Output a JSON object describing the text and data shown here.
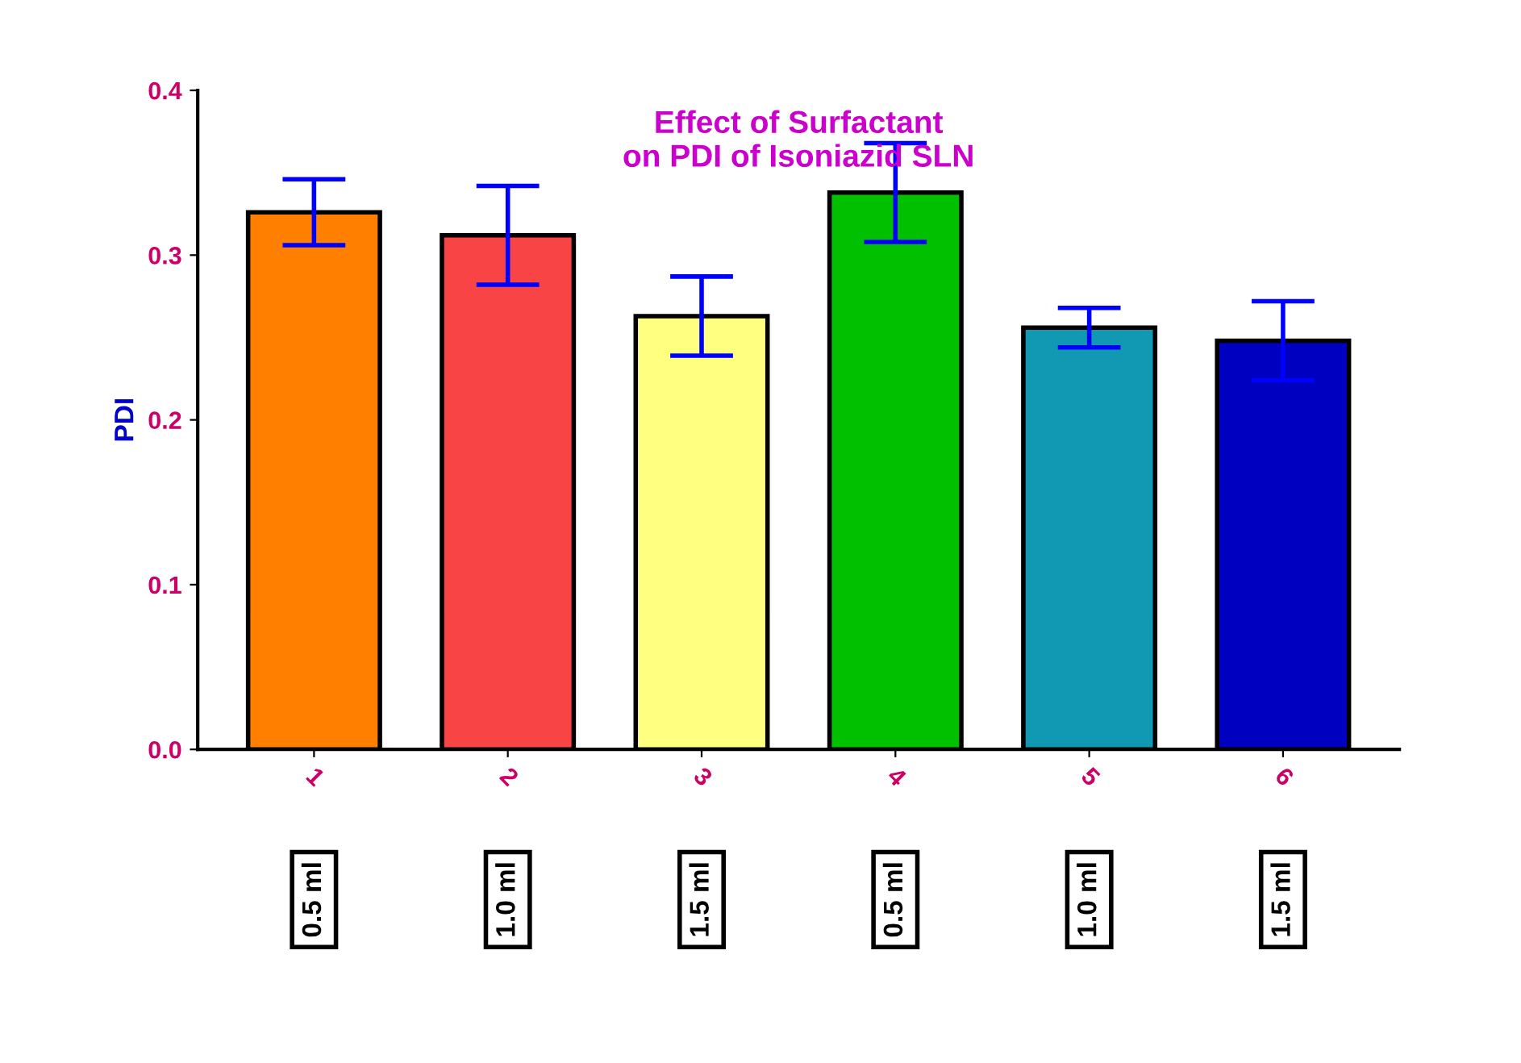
{
  "chart_data": {
    "type": "bar",
    "title": "Effect of Surfactant\non PDI of Isoniazid SLN",
    "ylabel": "PDI",
    "categories": [
      "1",
      "2",
      "3",
      "4",
      "5",
      "6"
    ],
    "values": [
      0.326,
      0.312,
      0.263,
      0.338,
      0.256,
      0.248
    ],
    "errors": [
      0.02,
      0.03,
      0.024,
      0.03,
      0.012,
      0.024
    ],
    "colors": [
      "#ff8000",
      "#f84444",
      "#ffff80",
      "#00c000",
      "#1199b3",
      "#0000c0"
    ],
    "annotations": [
      "0.5 ml",
      "1.0 ml",
      "1.5 ml",
      "0.5 ml",
      "1.0 ml",
      "1.5 ml"
    ],
    "ylim": [
      0,
      0.4
    ],
    "yticks": [
      {
        "value": 0,
        "label": "0.0"
      },
      {
        "value": 0.1,
        "label": "0.1"
      },
      {
        "value": 0.2,
        "label": "0.2"
      },
      {
        "value": 0.3,
        "label": "0.3"
      },
      {
        "value": 0.4,
        "label": "0.4"
      }
    ],
    "grid": false,
    "legend": false
  }
}
